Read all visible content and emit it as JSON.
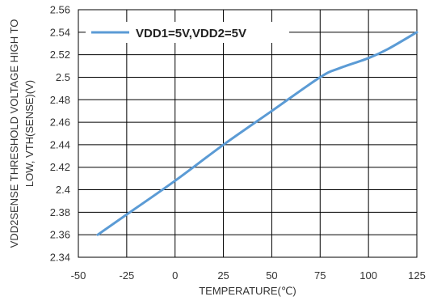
{
  "chart_data": {
    "type": "line",
    "title": "",
    "xlabel": "TEMPERATURE(℃)",
    "ylabel_lines": [
      "VDD2SENSE THRESHOLD VOLTAGE HIGH TO",
      "LOW, VTH(SENSE)(V)"
    ],
    "xlim": [
      -50,
      125
    ],
    "ylim": [
      2.34,
      2.56
    ],
    "xticks": [
      "-50",
      "-25",
      "0",
      "25",
      "50",
      "75",
      "100",
      "125"
    ],
    "yticks": [
      "2.34",
      "2.36",
      "2.38",
      "2.4",
      "2.42",
      "2.44",
      "2.46",
      "2.48",
      "2.5",
      "2.52",
      "2.54",
      "2.56"
    ],
    "grid": "on",
    "legend_position": "top-left",
    "series": [
      {
        "name": "VDD1=5V,VDD2=5V",
        "color": "#5b9bd5",
        "x": [
          -40,
          -25,
          0,
          25,
          50,
          75,
          85,
          100,
          110,
          125
        ],
        "y": [
          2.36,
          2.378,
          2.408,
          2.44,
          2.47,
          2.5,
          2.508,
          2.517,
          2.525,
          2.54
        ]
      }
    ]
  }
}
